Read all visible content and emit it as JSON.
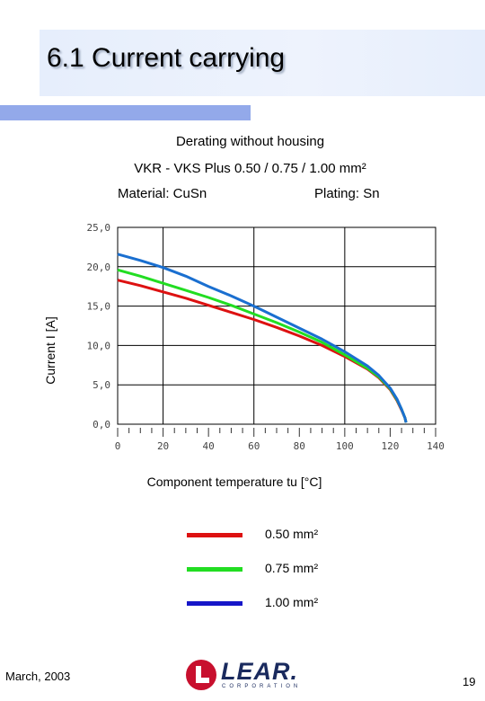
{
  "page": {
    "title": "6.1 Current carrying",
    "subtitle_1": "Derating without housing",
    "subtitle_2": "VKR - VKS  Plus 0.50 / 0.75 / 1.00 mm²",
    "material": "Material: CuSn",
    "plating": "Plating: Sn",
    "footer_date": "March, 2003",
    "page_number": "19",
    "logo_word": "LEAR.",
    "logo_sub": "CORPORATION"
  },
  "colors": {
    "accent_bar": "#93a9ea",
    "title_band": "#e6eefc",
    "series_050": "#dd1111",
    "series_075": "#22dd22",
    "series_100": "#1a6fd0"
  },
  "chart_data": {
    "type": "line",
    "title": "",
    "xlabel": "Component temperature tu [°C]",
    "ylabel": "Current I [A]",
    "xlim": [
      0,
      140
    ],
    "ylim": [
      0,
      25
    ],
    "x_ticks": [
      "0",
      "20",
      "40",
      "60",
      "80",
      "100",
      "120",
      "140"
    ],
    "y_ticks": [
      "0,0",
      "5,0",
      "10,0",
      "15,0",
      "20,0",
      "25,0"
    ],
    "grid": true,
    "legend_position": "below",
    "series": [
      {
        "name": "0.50 mm²",
        "color": "#dd1111",
        "x": [
          0,
          10,
          20,
          30,
          40,
          50,
          60,
          70,
          80,
          90,
          100,
          110,
          115,
          120,
          123,
          125,
          126.5,
          127
        ],
        "y": [
          18.3,
          17.6,
          16.8,
          16.0,
          15.1,
          14.2,
          13.3,
          12.3,
          11.2,
          10.0,
          8.6,
          7.0,
          5.9,
          4.4,
          3.0,
          1.8,
          0.8,
          0.2
        ]
      },
      {
        "name": "0.75 mm²",
        "color": "#22dd22",
        "x": [
          0,
          10,
          20,
          30,
          40,
          50,
          60,
          70,
          80,
          90,
          100,
          110,
          115,
          120,
          123,
          125,
          126.5,
          127
        ],
        "y": [
          19.6,
          18.8,
          17.9,
          17.0,
          16.1,
          15.1,
          14.0,
          12.9,
          11.7,
          10.4,
          8.8,
          7.1,
          6.0,
          4.5,
          3.1,
          1.9,
          0.8,
          0.2
        ]
      },
      {
        "name": "1.00 mm²",
        "color": "#1a6fd0",
        "x": [
          0,
          10,
          20,
          30,
          40,
          50,
          60,
          70,
          80,
          90,
          100,
          110,
          115,
          120,
          123,
          125,
          126.5,
          127
        ],
        "y": [
          21.6,
          20.8,
          19.9,
          18.8,
          17.5,
          16.3,
          15.0,
          13.6,
          12.2,
          10.8,
          9.2,
          7.4,
          6.2,
          4.6,
          3.2,
          1.9,
          0.8,
          0.2
        ]
      }
    ]
  }
}
